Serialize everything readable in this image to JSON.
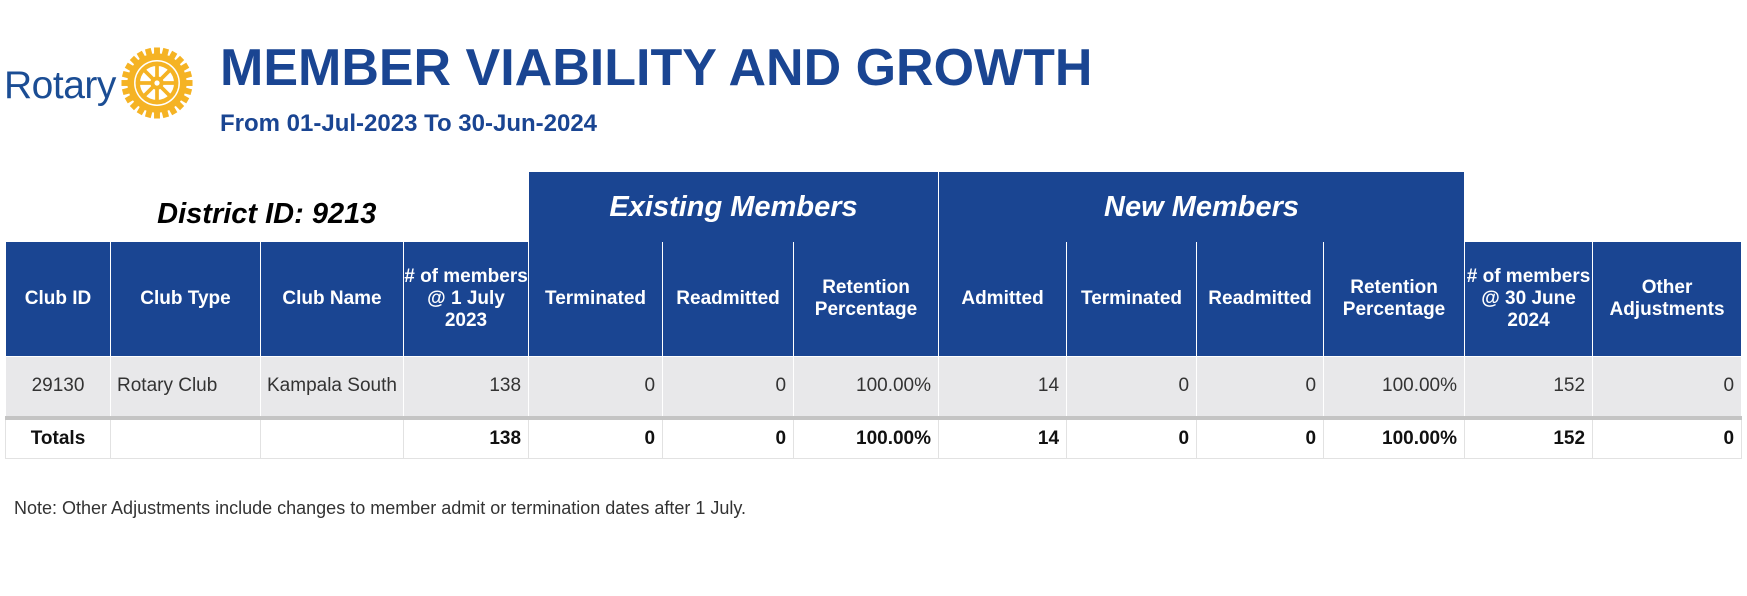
{
  "logo": {
    "text": "Rotary",
    "icon": "rotary-wheel-icon",
    "wheel_color": "#f5b324",
    "text_color": "#1b4d94"
  },
  "report": {
    "title": "MEMBER VIABILITY AND GROWTH",
    "subtitle": "From 01-Jul-2023 To 30-Jun-2024",
    "district_label": "District ID: 9213",
    "accent_color": "#1a4592"
  },
  "table": {
    "group_headers": {
      "existing": "Existing Members",
      "new": "New Members"
    },
    "columns": [
      "Club ID",
      "Club Type",
      "Club Name",
      "# of members @ 1 July 2023",
      "Terminated",
      "Readmitted",
      "Retention Percentage",
      "Admitted",
      "Terminated",
      "Readmitted",
      "Retention Percentage",
      "# of members @ 30 June 2024",
      "Other Adjustments"
    ],
    "rows": [
      [
        "29130",
        "Rotary Club",
        "Kampala South",
        "138",
        "0",
        "0",
        "100.00%",
        "14",
        "0",
        "0",
        "100.00%",
        "152",
        "0"
      ]
    ],
    "totals": [
      "Totals",
      "",
      "",
      "138",
      "0",
      "0",
      "100.00%",
      "14",
      "0",
      "0",
      "100.00%",
      "152",
      "0"
    ]
  },
  "note": "Note: Other Adjustments include changes to member admit or termination dates after 1 July."
}
